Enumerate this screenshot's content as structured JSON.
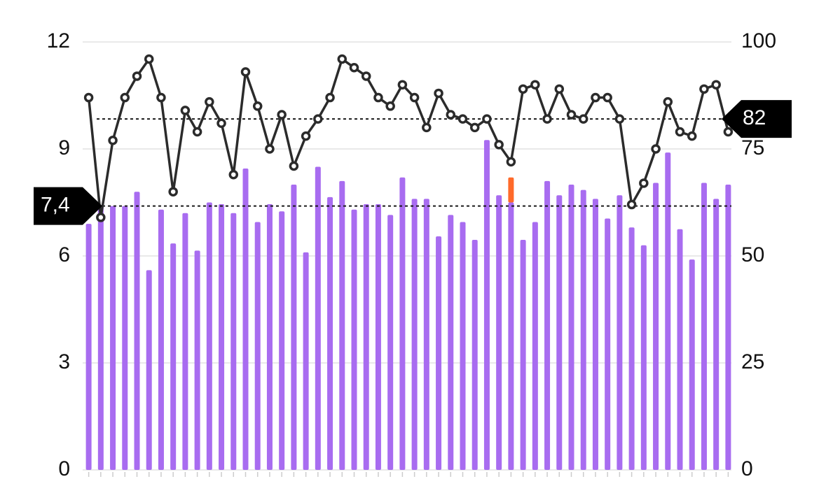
{
  "chart_data": {
    "type": "bar_line",
    "categories": [
      null,
      null,
      null,
      null,
      null,
      null,
      null,
      null,
      null,
      null,
      null,
      null,
      null,
      null,
      null,
      null,
      null,
      null,
      null,
      null,
      null,
      null,
      null,
      null,
      null,
      null,
      null,
      null,
      null,
      null,
      null,
      null,
      null,
      null,
      null,
      null,
      null,
      null,
      null,
      null,
      null,
      null,
      null,
      null,
      null,
      null,
      null,
      null,
      null,
      null,
      null,
      null,
      null,
      null
    ],
    "series": [
      {
        "type": "bar",
        "color": "#a86cf0",
        "values": [
          6.9,
          7.4,
          7.4,
          7.4,
          7.8,
          5.6,
          7.3,
          6.35,
          7.2,
          6.15,
          7.5,
          7.45,
          7.2,
          8.45,
          6.95,
          7.45,
          7.25,
          8.0,
          6.1,
          8.5,
          7.65,
          8.1,
          7.3,
          7.45,
          7.45,
          7.15,
          8.2,
          7.6,
          7.6,
          6.55,
          7.15,
          6.95,
          6.45,
          9.25,
          7.7,
          7.5,
          6.45,
          6.95,
          8.1,
          7.7,
          8.0,
          7.85,
          7.6,
          7.05,
          7.7,
          6.8,
          6.3,
          8.05,
          8.9,
          6.75,
          5.9,
          8.05,
          7.6,
          8.0
        ]
      },
      {
        "type": "bar",
        "color": "#ff6a2a",
        "values": [
          null,
          null,
          null,
          null,
          null,
          null,
          null,
          null,
          null,
          null,
          null,
          null,
          null,
          null,
          null,
          null,
          null,
          null,
          null,
          null,
          null,
          null,
          null,
          null,
          null,
          null,
          null,
          null,
          null,
          null,
          null,
          null,
          null,
          null,
          null,
          0.7,
          null,
          null,
          null,
          null,
          null,
          null,
          null,
          null,
          null,
          null,
          null,
          null,
          null,
          null,
          null,
          null,
          null,
          null
        ]
      },
      {
        "type": "line",
        "axis": "y2",
        "color": "#2b2b2b",
        "values": [
          87,
          59,
          77,
          87,
          92,
          96,
          87,
          65,
          84,
          79,
          86,
          81,
          69,
          93,
          85,
          75,
          83,
          71,
          78,
          82,
          87,
          96,
          94,
          92,
          87,
          85,
          90,
          87,
          80,
          88,
          83,
          82,
          80,
          82,
          76,
          72,
          89,
          90,
          82,
          89,
          83,
          82,
          87,
          87,
          82,
          62,
          67,
          75,
          86,
          79,
          78,
          89,
          90,
          79
        ]
      }
    ],
    "ylim": [
      0,
      12
    ],
    "yticks": [
      0,
      3,
      6,
      9,
      12
    ],
    "y2lim": [
      0,
      100
    ],
    "y2ticks": [
      0,
      25,
      50,
      75,
      100
    ],
    "grid": true,
    "reference_lines": [
      {
        "axis": "y",
        "value": 7.4,
        "label": "7,4"
      },
      {
        "axis": "y2",
        "value": 82,
        "label": "82"
      }
    ]
  }
}
